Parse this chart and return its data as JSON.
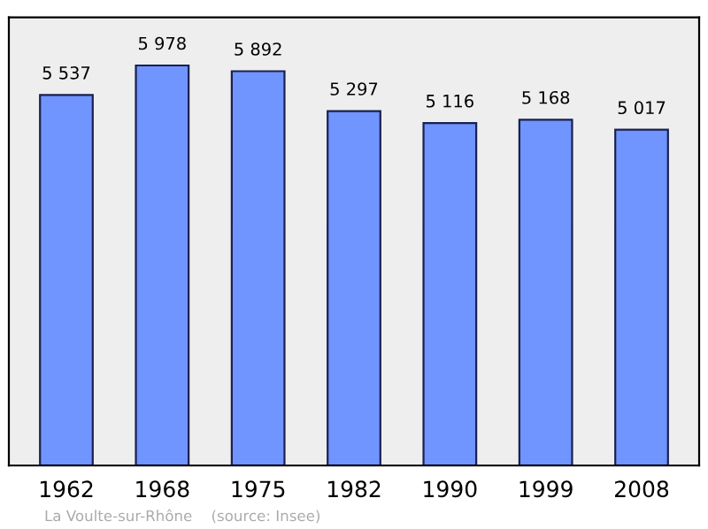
{
  "chart_data": {
    "type": "bar",
    "categories": [
      "1962",
      "1968",
      "1975",
      "1982",
      "1990",
      "1999",
      "2008"
    ],
    "values": [
      5537,
      5978,
      5892,
      5297,
      5116,
      5168,
      5017
    ],
    "value_labels": [
      "5 537",
      "5 978",
      "5 892",
      "5 297",
      "5 116",
      "5 168",
      "5 017"
    ],
    "color": "#7095ff",
    "grid": false,
    "legend": false,
    "annotations": [
      "La Voulte-sur-Rhône    (source: Insee)"
    ]
  }
}
